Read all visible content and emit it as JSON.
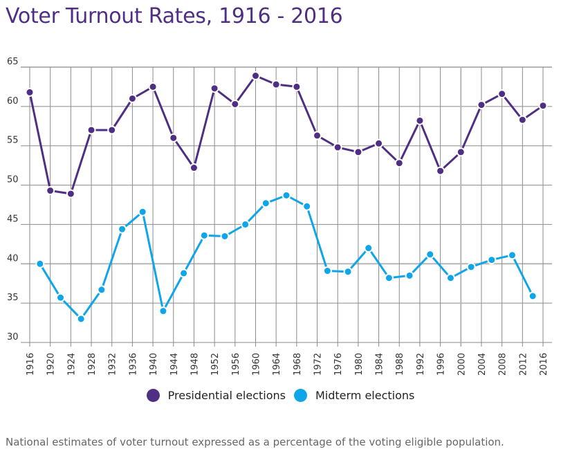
{
  "chart_data": {
    "type": "line",
    "title": "Voter Turnout Rates, 1916 - 2016",
    "xlabel": "",
    "ylabel": "",
    "ylim": [
      30,
      65
    ],
    "xlim": [
      1916,
      2016
    ],
    "yticks": [
      30,
      35,
      40,
      45,
      50,
      55,
      60,
      65
    ],
    "xticks": [
      1916,
      1920,
      1924,
      1928,
      1932,
      1936,
      1940,
      1944,
      1948,
      1952,
      1956,
      1960,
      1964,
      1968,
      1972,
      1976,
      1980,
      1984,
      1988,
      1992,
      1996,
      2000,
      2004,
      2008,
      2012,
      2016
    ],
    "grid": true,
    "legend_position": "bottom-center",
    "series": [
      {
        "name": "Presidential elections",
        "color": "#4e2f83",
        "x": [
          1916,
          1920,
          1924,
          1928,
          1932,
          1936,
          1940,
          1944,
          1948,
          1952,
          1956,
          1960,
          1964,
          1968,
          1972,
          1976,
          1980,
          1984,
          1988,
          1992,
          1996,
          2000,
          2004,
          2008,
          2012,
          2016
        ],
        "values": [
          61.8,
          49.3,
          48.9,
          57.0,
          57.0,
          61.0,
          62.5,
          56.0,
          52.2,
          62.3,
          60.3,
          63.9,
          62.8,
          62.5,
          56.3,
          54.8,
          54.2,
          55.3,
          52.8,
          58.2,
          51.8,
          54.2,
          60.2,
          61.6,
          58.3,
          60.1
        ]
      },
      {
        "name": "Midterm elections",
        "color": "#0ea5e9",
        "x": [
          1918,
          1922,
          1926,
          1930,
          1934,
          1938,
          1942,
          1946,
          1950,
          1954,
          1958,
          1962,
          1966,
          1970,
          1974,
          1978,
          1982,
          1986,
          1990,
          1994,
          1998,
          2002,
          2006,
          2010,
          2014
        ],
        "values": [
          40.0,
          35.7,
          33.0,
          36.7,
          44.4,
          46.6,
          34.0,
          38.8,
          43.6,
          43.5,
          45.0,
          47.7,
          48.7,
          47.3,
          39.1,
          39.0,
          42.0,
          38.2,
          38.5,
          41.2,
          38.2,
          39.6,
          40.5,
          41.1,
          35.9
        ]
      }
    ]
  },
  "caption": "National estimates of voter turnout expressed as a percentage of the voting eligible population."
}
